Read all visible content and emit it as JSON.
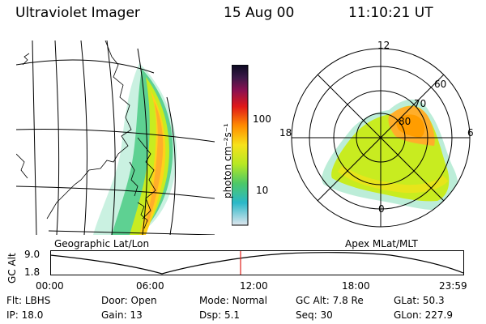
{
  "header": {
    "instrument": "Ultraviolet Imager",
    "date": "15 Aug 00",
    "time": "11:10:21 UT"
  },
  "colorbar": {
    "unit_label": "photon cm⁻²s⁻¹",
    "ticks": [
      "100",
      "10"
    ]
  },
  "maps": {
    "geographic_label": "Geographic Lat/Lon",
    "polar_label": "Apex MLat/MLT",
    "polar_hour_labels": [
      "12",
      "18",
      "6",
      "0"
    ],
    "polar_lat_labels": [
      "60",
      "70",
      "80"
    ]
  },
  "altitude_plot": {
    "ylabel": "GC Alt",
    "y_ticks": [
      "9.0",
      "1.8"
    ],
    "x_ticks": [
      "00:00",
      "06:00",
      "12:00",
      "18:00",
      "23:59"
    ],
    "current_marker_time": "11:10"
  },
  "info": {
    "row1": [
      {
        "label": "Flt:",
        "value": "LBHS"
      },
      {
        "label": "Door:",
        "value": "Open"
      },
      {
        "label": "Mode:",
        "value": "Normal"
      },
      {
        "label": "GC Alt:",
        "value": "7.8 Re"
      },
      {
        "label": "GLat:",
        "value": "50.3"
      }
    ],
    "row2": [
      {
        "label": "IP:",
        "value": "18.0"
      },
      {
        "label": "Gain:",
        "value": "13"
      },
      {
        "label": "Dsp:",
        "value": "5.1"
      },
      {
        "label": "Seq:",
        "value": "30"
      },
      {
        "label": "GLon:",
        "value": "227.9"
      }
    ]
  },
  "colors": {
    "marker": "#e0201a",
    "aurora_low": "#9fe6c8",
    "aurora_mid": "#c8ec20",
    "aurora_high": "#ffa500"
  }
}
